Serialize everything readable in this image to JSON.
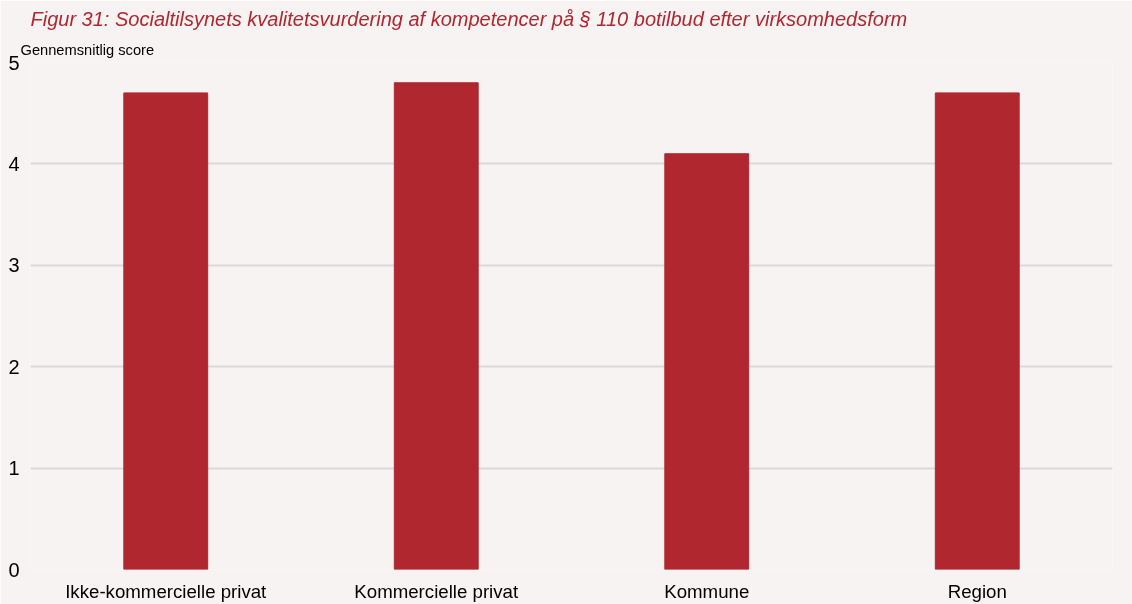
{
  "chart_data": {
    "type": "bar",
    "title": "Figur 31: Socialtilsynets kvalitetsvurdering af kompetencer på § 110 botilbud efter virksomhedsform",
    "ylabel": "Gennemsnitlig score",
    "categories": [
      "Ikke-kommercielle privat",
      "Kommercielle privat",
      "Kommune",
      "Region"
    ],
    "values": [
      4.7,
      4.8,
      4.1,
      4.7
    ],
    "color": "#b0272f",
    "ylim": [
      0,
      5
    ],
    "yticks": [
      0,
      1,
      2,
      3,
      4,
      5
    ],
    "grid": "y"
  }
}
